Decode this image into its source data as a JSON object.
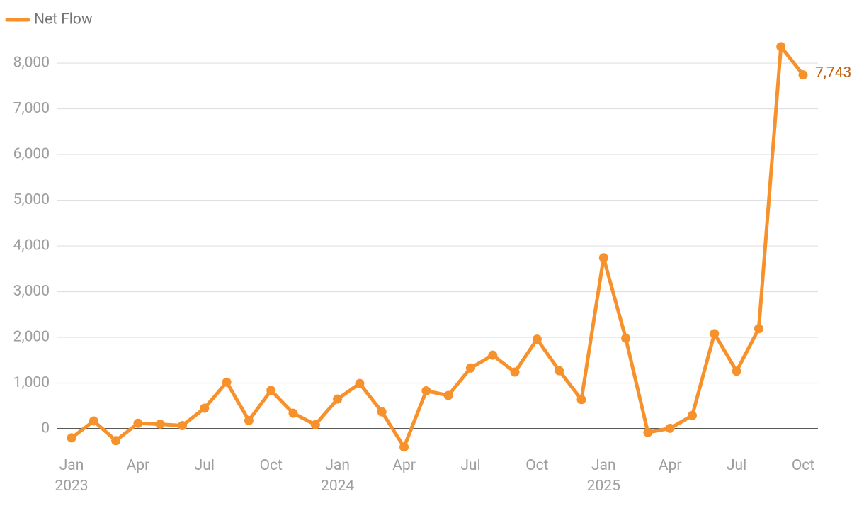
{
  "chart_data": {
    "type": "line",
    "categories": [
      "Jan 2023",
      null,
      null,
      "Apr",
      null,
      null,
      "Jul",
      null,
      null,
      "Oct",
      null,
      null,
      "Jan 2024",
      null,
      null,
      "Apr",
      null,
      null,
      "Jul",
      null,
      null,
      "Oct",
      null,
      null,
      "Jan 2025",
      null,
      null,
      "Apr",
      null,
      null,
      "Jul",
      null,
      null,
      "Oct"
    ],
    "series": [
      {
        "name": "Net Flow",
        "color": "#f7912b",
        "values": [
          -200,
          170,
          -260,
          120,
          100,
          70,
          450,
          1020,
          180,
          840,
          340,
          90,
          650,
          990,
          370,
          -400,
          830,
          730,
          1330,
          1610,
          1240,
          1960,
          1270,
          640,
          3740,
          1980,
          -80,
          10,
          290,
          2080,
          1260,
          2190,
          8360,
          7743
        ],
        "value_labels": [
          null,
          null,
          null,
          null,
          null,
          null,
          null,
          null,
          null,
          null,
          null,
          null,
          null,
          null,
          null,
          null,
          null,
          null,
          null,
          null,
          null,
          null,
          null,
          null,
          null,
          null,
          null,
          null,
          null,
          null,
          null,
          null,
          null,
          "7,743"
        ]
      }
    ],
    "ylim": [
      -550,
      8500
    ],
    "yticks": [
      0,
      {
        "value": 1000,
        "label": "1,000"
      },
      {
        "value": 2000,
        "label": "2,000"
      },
      {
        "value": 3000,
        "label": "3,000"
      },
      {
        "value": 4000,
        "label": "4,000"
      },
      {
        "value": 5000,
        "label": "5,000"
      },
      {
        "value": 6000,
        "label": "6,000"
      },
      {
        "value": 7000,
        "label": "7,000"
      },
      {
        "value": 8000,
        "label": "8,000"
      }
    ],
    "grid": true,
    "legend": "top-left"
  }
}
